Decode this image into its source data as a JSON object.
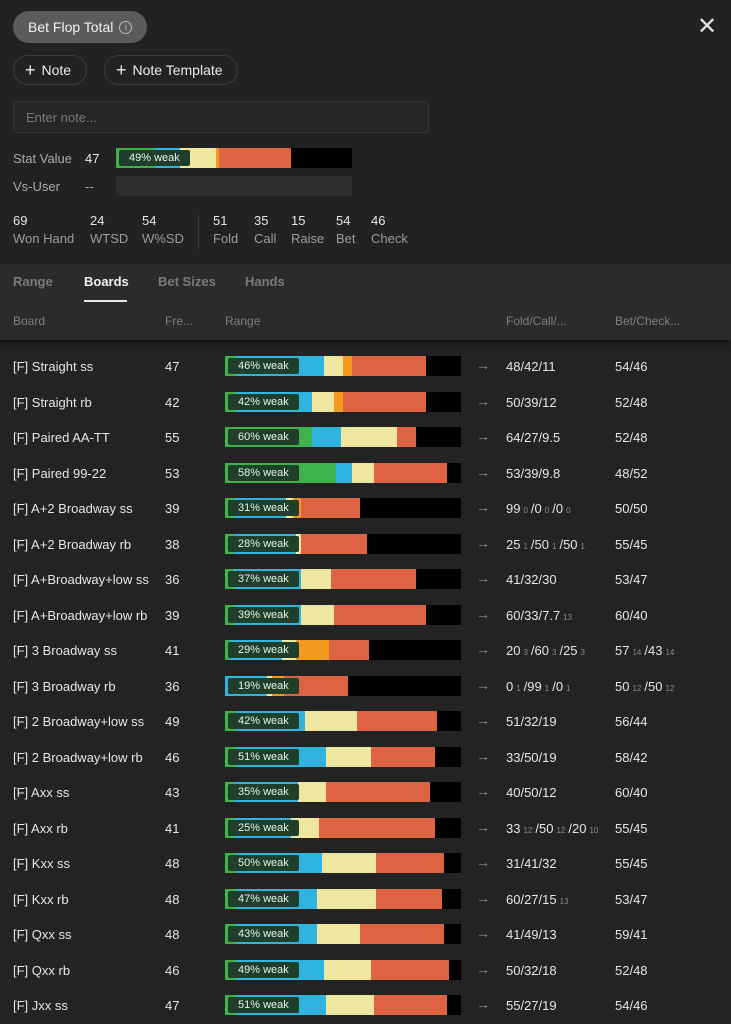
{
  "header": {
    "title": "Bet Flop Total",
    "close_icon": "close-icon",
    "note_button": "Note",
    "note_template_button": "Note Template",
    "note_placeholder": "Enter note..."
  },
  "stat_value": {
    "label": "Stat Value",
    "value": "47",
    "bar_label": "49% weak",
    "segments": [
      {
        "color": "#3fb24b",
        "frac": 0.165
      },
      {
        "color": "#2fb3df",
        "frac": 0.105
      },
      {
        "color": "#efe6a0",
        "frac": 0.155
      },
      {
        "color": "#f39a1e",
        "frac": 0.01
      },
      {
        "color": "#dd6343",
        "frac": 0.305
      },
      {
        "color": "#000000",
        "frac": 0.26
      }
    ]
  },
  "vs_user": {
    "label": "Vs-User",
    "value": "--"
  },
  "stats": [
    {
      "num": "69",
      "label": "Won Hand"
    },
    {
      "num": "24",
      "label": "WTSD"
    },
    {
      "num": "54",
      "label": "W%SD"
    },
    {
      "num": "51",
      "label": "Fold"
    },
    {
      "num": "35",
      "label": "Call"
    },
    {
      "num": "15",
      "label": "Raise"
    },
    {
      "num": "54",
      "label": "Bet"
    },
    {
      "num": "46",
      "label": "Check"
    }
  ],
  "tabs": [
    "Range",
    "Boards",
    "Bet Sizes",
    "Hands"
  ],
  "active_tab": "Boards",
  "columns": {
    "board": "Board",
    "freq": "Fre...",
    "range": "Range",
    "fold_call": "Fold/Call/...",
    "bet_check": "Bet/Check..."
  },
  "colors": {
    "green": "#3fb24b",
    "blue": "#2fb3df",
    "yellow": "#efe6a0",
    "orange": "#f39a1e",
    "red": "#dd6343",
    "black": "#000000"
  },
  "rows": [
    {
      "name": "[F] Straight ss",
      "freq": "47",
      "weak": "46% weak",
      "segs": [
        [
          "green",
          0.05
        ],
        [
          "blue",
          0.37
        ],
        [
          "yellow",
          0.08
        ],
        [
          "orange",
          0.04
        ],
        [
          "red",
          0.31
        ],
        [
          "black",
          0.15
        ]
      ],
      "fc": [
        [
          "48",
          ""
        ],
        [
          "/42",
          ""
        ],
        [
          "/11",
          ""
        ]
      ],
      "bc": [
        [
          "54",
          ""
        ],
        [
          "/46",
          ""
        ]
      ]
    },
    {
      "name": "[F] Straight rb",
      "freq": "42",
      "weak": "42% weak",
      "segs": [
        [
          "green",
          0.05
        ],
        [
          "blue",
          0.32
        ],
        [
          "yellow",
          0.09
        ],
        [
          "orange",
          0.04
        ],
        [
          "red",
          0.35
        ],
        [
          "black",
          0.15
        ]
      ],
      "fc": [
        [
          "50",
          ""
        ],
        [
          "/39",
          ""
        ],
        [
          "/12",
          ""
        ]
      ],
      "bc": [
        [
          "52",
          ""
        ],
        [
          "/48",
          ""
        ]
      ]
    },
    {
      "name": "[F] Paired AA-TT",
      "freq": "55",
      "weak": "60% weak",
      "segs": [
        [
          "green",
          0.37
        ],
        [
          "blue",
          0.12
        ],
        [
          "yellow",
          0.24
        ],
        [
          "red",
          0.08
        ],
        [
          "black",
          0.19
        ]
      ],
      "fc": [
        [
          "64",
          ""
        ],
        [
          "/27",
          ""
        ],
        [
          "/9.5",
          ""
        ]
      ],
      "bc": [
        [
          "52",
          ""
        ],
        [
          "/48",
          ""
        ]
      ]
    },
    {
      "name": "[F] Paired 99-22",
      "freq": "53",
      "weak": "58% weak",
      "segs": [
        [
          "green",
          0.47
        ],
        [
          "blue",
          0.07
        ],
        [
          "yellow",
          0.09
        ],
        [
          "red",
          0.31
        ],
        [
          "black",
          0.06
        ]
      ],
      "fc": [
        [
          "53",
          ""
        ],
        [
          "/39",
          ""
        ],
        [
          "/9.8",
          ""
        ]
      ],
      "bc": [
        [
          "48",
          ""
        ],
        [
          "/52",
          ""
        ]
      ]
    },
    {
      "name": "[F] A+2 Broadway ss",
      "freq": "39",
      "weak": "31% weak",
      "segs": [
        [
          "green",
          0.04
        ],
        [
          "blue",
          0.22
        ],
        [
          "yellow",
          0.03
        ],
        [
          "orange",
          0.03
        ],
        [
          "red",
          0.25
        ],
        [
          "black",
          0.43
        ]
      ],
      "fc": [
        [
          "99",
          ""
        ],
        [
          "0",
          "dim"
        ],
        [
          "/0",
          ""
        ],
        [
          "0",
          "dim"
        ],
        [
          "/0",
          ""
        ],
        [
          "0",
          "dim"
        ]
      ],
      "bc": [
        [
          "50",
          ""
        ],
        [
          "/50",
          ""
        ]
      ]
    },
    {
      "name": "[F] A+2 Broadway rb",
      "freq": "38",
      "weak": "28% weak",
      "segs": [
        [
          "green",
          0.04
        ],
        [
          "blue",
          0.26
        ],
        [
          "yellow",
          0.02
        ],
        [
          "red",
          0.28
        ],
        [
          "black",
          0.4
        ]
      ],
      "fc": [
        [
          "25",
          ""
        ],
        [
          "1",
          "dim"
        ],
        [
          "/50",
          ""
        ],
        [
          "1",
          "dim"
        ],
        [
          "/50",
          ""
        ],
        [
          "1",
          "dim"
        ]
      ],
      "bc": [
        [
          "55",
          ""
        ],
        [
          "/45",
          ""
        ]
      ]
    },
    {
      "name": "[F] A+Broadway+low ss",
      "freq": "36",
      "weak": "37% weak",
      "segs": [
        [
          "green",
          0.04
        ],
        [
          "blue",
          0.28
        ],
        [
          "yellow",
          0.13
        ],
        [
          "red",
          0.36
        ],
        [
          "black",
          0.19
        ]
      ],
      "fc": [
        [
          "41",
          ""
        ],
        [
          "/32",
          ""
        ],
        [
          "/30",
          ""
        ]
      ],
      "bc": [
        [
          "53",
          ""
        ],
        [
          "/47",
          ""
        ]
      ]
    },
    {
      "name": "[F] A+Broadway+low rb",
      "freq": "39",
      "weak": "39% weak",
      "segs": [
        [
          "green",
          0.04
        ],
        [
          "blue",
          0.28
        ],
        [
          "yellow",
          0.14
        ],
        [
          "red",
          0.39
        ],
        [
          "black",
          0.15
        ]
      ],
      "fc": [
        [
          "60",
          ""
        ],
        [
          "/33",
          ""
        ],
        [
          "/7.7",
          ""
        ],
        [
          "13",
          "dim"
        ]
      ],
      "bc": [
        [
          "60",
          ""
        ],
        [
          "/40",
          ""
        ]
      ]
    },
    {
      "name": "[F] 3 Broadway ss",
      "freq": "41",
      "weak": "29% weak",
      "segs": [
        [
          "green",
          0.02
        ],
        [
          "blue",
          0.22
        ],
        [
          "yellow",
          0.06
        ],
        [
          "orange",
          0.14
        ],
        [
          "red",
          0.17
        ],
        [
          "black",
          0.39
        ]
      ],
      "fc": [
        [
          "20",
          ""
        ],
        [
          "3",
          "dim"
        ],
        [
          "/60",
          ""
        ],
        [
          "3",
          "dim"
        ],
        [
          "/25",
          ""
        ],
        [
          "3",
          "dim"
        ]
      ],
      "bc": [
        [
          "57",
          ""
        ],
        [
          "14",
          "dim"
        ],
        [
          "/43",
          ""
        ],
        [
          "14",
          "dim"
        ]
      ]
    },
    {
      "name": "[F] 3 Broadway rb",
      "freq": "36",
      "weak": "19% weak",
      "segs": [
        [
          "blue",
          0.18
        ],
        [
          "yellow",
          0.02
        ],
        [
          "orange",
          0.05
        ],
        [
          "red",
          0.27
        ],
        [
          "black",
          0.48
        ]
      ],
      "fc": [
        [
          "0",
          ""
        ],
        [
          "1",
          "dim"
        ],
        [
          "/99",
          ""
        ],
        [
          "1",
          "dim"
        ],
        [
          "/0",
          ""
        ],
        [
          "1",
          "dim"
        ]
      ],
      "bc": [
        [
          "50",
          ""
        ],
        [
          "12",
          "dim"
        ],
        [
          "/50",
          ""
        ],
        [
          "12",
          "dim"
        ]
      ]
    },
    {
      "name": "[F] 2 Broadway+low ss",
      "freq": "49",
      "weak": "42% weak",
      "segs": [
        [
          "green",
          0.05
        ],
        [
          "blue",
          0.29
        ],
        [
          "yellow",
          0.22
        ],
        [
          "red",
          0.34
        ],
        [
          "black",
          0.1
        ]
      ],
      "fc": [
        [
          "51",
          ""
        ],
        [
          "/32",
          ""
        ],
        [
          "/19",
          ""
        ]
      ],
      "bc": [
        [
          "56",
          ""
        ],
        [
          "/44",
          ""
        ]
      ]
    },
    {
      "name": "[F] 2 Broadway+low rb",
      "freq": "46",
      "weak": "51% weak",
      "segs": [
        [
          "green",
          0.05
        ],
        [
          "blue",
          0.38
        ],
        [
          "yellow",
          0.19
        ],
        [
          "red",
          0.27
        ],
        [
          "black",
          0.11
        ]
      ],
      "fc": [
        [
          "33",
          ""
        ],
        [
          "/50",
          ""
        ],
        [
          "/19",
          ""
        ]
      ],
      "bc": [
        [
          "58",
          ""
        ],
        [
          "/42",
          ""
        ]
      ]
    },
    {
      "name": "[F] Axx ss",
      "freq": "43",
      "weak": "35% weak",
      "segs": [
        [
          "green",
          0.04
        ],
        [
          "blue",
          0.27
        ],
        [
          "yellow",
          0.12
        ],
        [
          "red",
          0.44
        ],
        [
          "black",
          0.13
        ]
      ],
      "fc": [
        [
          "40",
          ""
        ],
        [
          "/50",
          ""
        ],
        [
          "/12",
          ""
        ]
      ],
      "bc": [
        [
          "60",
          ""
        ],
        [
          "/40",
          ""
        ]
      ]
    },
    {
      "name": "[F] Axx rb",
      "freq": "41",
      "weak": "25% weak",
      "segs": [
        [
          "green",
          0.04
        ],
        [
          "blue",
          0.24
        ],
        [
          "yellow",
          0.12
        ],
        [
          "red",
          0.49
        ],
        [
          "black",
          0.11
        ]
      ],
      "fc": [
        [
          "33",
          ""
        ],
        [
          "12",
          "dim"
        ],
        [
          "/50",
          ""
        ],
        [
          "12",
          "dim"
        ],
        [
          "/20",
          ""
        ],
        [
          "10",
          "dim"
        ]
      ],
      "bc": [
        [
          "55",
          ""
        ],
        [
          "/45",
          ""
        ]
      ]
    },
    {
      "name": "[F] Kxx ss",
      "freq": "48",
      "weak": "50% weak",
      "segs": [
        [
          "green",
          0.05
        ],
        [
          "blue",
          0.36
        ],
        [
          "yellow",
          0.23
        ],
        [
          "red",
          0.29
        ],
        [
          "black",
          0.07
        ]
      ],
      "fc": [
        [
          "31",
          ""
        ],
        [
          "/41",
          ""
        ],
        [
          "/32",
          ""
        ]
      ],
      "bc": [
        [
          "55",
          ""
        ],
        [
          "/45",
          ""
        ]
      ]
    },
    {
      "name": "[F] Kxx rb",
      "freq": "48",
      "weak": "47% weak",
      "segs": [
        [
          "green",
          0.05
        ],
        [
          "blue",
          0.34
        ],
        [
          "yellow",
          0.25
        ],
        [
          "red",
          0.28
        ],
        [
          "black",
          0.08
        ]
      ],
      "fc": [
        [
          "60",
          ""
        ],
        [
          "/27",
          ""
        ],
        [
          "/15",
          ""
        ],
        [
          "13",
          "dim"
        ]
      ],
      "bc": [
        [
          "53",
          ""
        ],
        [
          "/47",
          ""
        ]
      ]
    },
    {
      "name": "[F] Qxx ss",
      "freq": "48",
      "weak": "43% weak",
      "segs": [
        [
          "green",
          0.05
        ],
        [
          "blue",
          0.34
        ],
        [
          "yellow",
          0.18
        ],
        [
          "red",
          0.36
        ],
        [
          "black",
          0.07
        ]
      ],
      "fc": [
        [
          "41",
          ""
        ],
        [
          "/49",
          ""
        ],
        [
          "/13",
          ""
        ]
      ],
      "bc": [
        [
          "59",
          ""
        ],
        [
          "/41",
          ""
        ]
      ]
    },
    {
      "name": "[F] Qxx rb",
      "freq": "46",
      "weak": "49% weak",
      "segs": [
        [
          "green",
          0.05
        ],
        [
          "blue",
          0.37
        ],
        [
          "yellow",
          0.2
        ],
        [
          "red",
          0.33
        ],
        [
          "black",
          0.05
        ]
      ],
      "fc": [
        [
          "50",
          ""
        ],
        [
          "/32",
          ""
        ],
        [
          "/18",
          ""
        ]
      ],
      "bc": [
        [
          "52",
          ""
        ],
        [
          "/48",
          ""
        ]
      ]
    },
    {
      "name": "[F] Jxx ss",
      "freq": "47",
      "weak": "51% weak",
      "segs": [
        [
          "green",
          0.05
        ],
        [
          "blue",
          0.38
        ],
        [
          "yellow",
          0.2
        ],
        [
          "red",
          0.31
        ],
        [
          "black",
          0.06
        ]
      ],
      "fc": [
        [
          "55",
          ""
        ],
        [
          "/27",
          ""
        ],
        [
          "/19",
          ""
        ]
      ],
      "bc": [
        [
          "54",
          ""
        ],
        [
          "/46",
          ""
        ]
      ]
    }
  ]
}
